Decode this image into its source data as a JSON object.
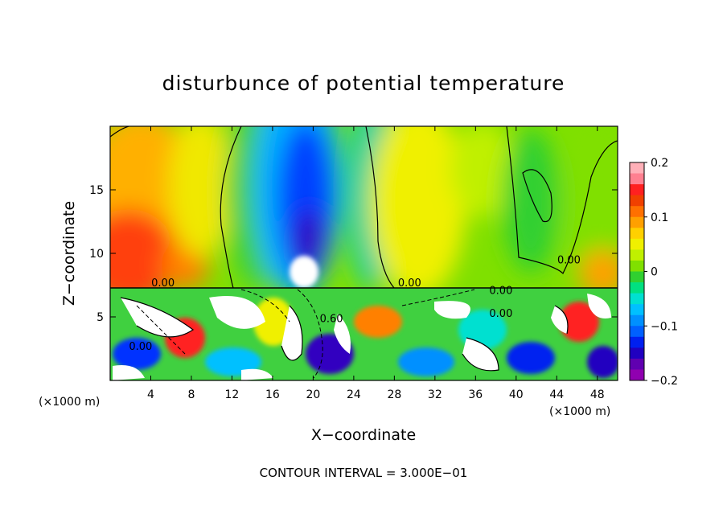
{
  "chart_data": {
    "type": "heatmap",
    "title": "disturbunce of potential temperature",
    "xlabel": "X−coordinate",
    "ylabel": "Z−coordinate",
    "x_unit_left": "(×1000 m)",
    "x_unit_right": "(×1000 m)",
    "footer": "CONTOUR INTERVAL = 3.000E−01",
    "xlim": [
      0,
      50
    ],
    "ylim": [
      0,
      20
    ],
    "x_ticks": [
      4,
      8,
      12,
      16,
      20,
      24,
      28,
      32,
      36,
      40,
      44,
      48
    ],
    "y_ticks": [
      5,
      10,
      15
    ],
    "colorbar": {
      "range": [
        -0.2,
        0.2
      ],
      "tick_labels": [
        "0.2",
        "0.1",
        "0",
        "−0.1",
        "−0.2"
      ],
      "tick_values": [
        0.2,
        0.1,
        0,
        -0.1,
        -0.2
      ],
      "colors": [
        "#ffb0b8",
        "#ff8090",
        "#ff2020",
        "#f04000",
        "#ff7000",
        "#ffa000",
        "#ffd000",
        "#f0f000",
        "#c0f000",
        "#80e000",
        "#30d030",
        "#00e080",
        "#00e0d0",
        "#00c0ff",
        "#0090ff",
        "#0060ff",
        "#0020f0",
        "#2000c0",
        "#6000b0",
        "#9000b0"
      ]
    },
    "contour_labels": [
      {
        "text": "0.00",
        "x": 5.2,
        "z": 7.4
      },
      {
        "text": "0.00",
        "x": 29.5,
        "z": 7.4
      },
      {
        "text": "0.00",
        "x": 45.2,
        "z": 9.2
      },
      {
        "text": "0.00",
        "x": 38.5,
        "z": 6.8
      },
      {
        "text": "0.00",
        "x": 38.5,
        "z": 5.0
      },
      {
        "text": "0.00",
        "x": 3.0,
        "z": 2.4
      },
      {
        "text": "0.60",
        "x": 21.8,
        "z": 4.6
      }
    ]
  }
}
